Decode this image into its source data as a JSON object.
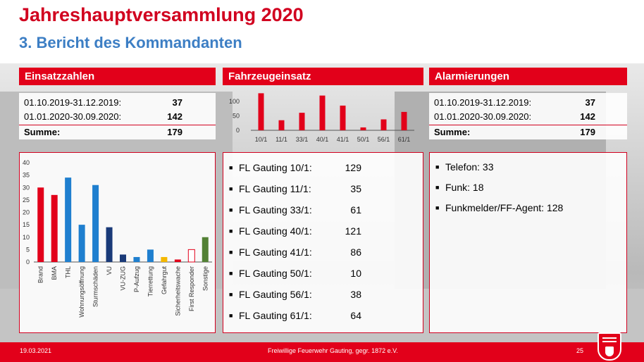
{
  "slide": {
    "title": "Jahreshauptversammlung 2020",
    "subtitle": "3. Bericht des Kommandanten"
  },
  "einsatzzahlen": {
    "header": "Einsatzzahlen",
    "rows": [
      {
        "label": "01.10.2019-31.12.2019:",
        "value": "37"
      },
      {
        "label": "01.01.2020-30.09.2020:",
        "value": "142"
      }
    ],
    "total": {
      "label": "Summe:",
      "value": "179"
    }
  },
  "fahrzeugeinsatz": {
    "header": "Fahrzeugeinsatz",
    "items": [
      {
        "name": "FL Gauting 10/1:",
        "count": "129"
      },
      {
        "name": "FL Gauting 11/1:",
        "count": "35"
      },
      {
        "name": "FL Gauting 33/1:",
        "count": "61"
      },
      {
        "name": "FL Gauting 40/1:",
        "count": "121"
      },
      {
        "name": "FL Gauting 41/1:",
        "count": "86"
      },
      {
        "name": "FL Gauting 50/1:",
        "count": "10"
      },
      {
        "name": "FL Gauting 56/1:",
        "count": "38"
      },
      {
        "name": "FL Gauting 61/1:",
        "count": "64"
      }
    ]
  },
  "alarmierungen": {
    "header": "Alarmierungen",
    "rows": [
      {
        "label": "01.10.2019-31.12.2019:",
        "value": "37"
      },
      {
        "label": "01.01.2020-30.09.2020:",
        "value": "142"
      }
    ],
    "total": {
      "label": "Summe:",
      "value": "179"
    },
    "items": [
      "Telefon: 33",
      "Funk: 18",
      "Funkmelder/FF-Agent: 128"
    ]
  },
  "footer": {
    "date": "19.03.2021",
    "center": "Freiwillige Feuerwehr Gauting, gegr. 1872 e.V.",
    "page": "25"
  },
  "colors": {
    "accent_red": "#e2001a",
    "title_red": "#d1001f",
    "subtitle_blue": "#3c7ec4"
  },
  "chart_data": [
    {
      "type": "bar",
      "title": "",
      "categories": [
        "Brand",
        "BMA",
        "THL",
        "Wohnungsöffnung",
        "Sturmschäden",
        "VU",
        "VU-ZUG",
        "P-Aufzug",
        "Tierrettung",
        "Gefahrgut",
        "Sicherheitswache",
        "First Responder",
        "Sonstige"
      ],
      "values": [
        30,
        27,
        34,
        15,
        31,
        14,
        3,
        2,
        5,
        2,
        1,
        5,
        10
      ],
      "colors": [
        "#e2001a",
        "#e2001a",
        "#1f7fcf",
        "#1f7fcf",
        "#1f7fcf",
        "#1a3a78",
        "#1a3a78",
        "#1f7fcf",
        "#1f7fcf",
        "#f5b800",
        "#e2001a",
        "#ffffff",
        "#538135"
      ],
      "yticks": [
        0,
        5,
        10,
        15,
        20,
        25,
        30,
        35,
        40
      ],
      "ylim": [
        0,
        40
      ],
      "grid": false
    },
    {
      "type": "bar",
      "title": "",
      "categories": [
        "10/1",
        "11/1",
        "33/1",
        "40/1",
        "41/1",
        "50/1",
        "56/1",
        "61/1"
      ],
      "values": [
        129,
        35,
        61,
        121,
        86,
        10,
        38,
        64
      ],
      "yticks": [
        0,
        50,
        100
      ],
      "ylim": [
        0,
        130
      ],
      "color": "#e2001a",
      "grid": false
    }
  ]
}
